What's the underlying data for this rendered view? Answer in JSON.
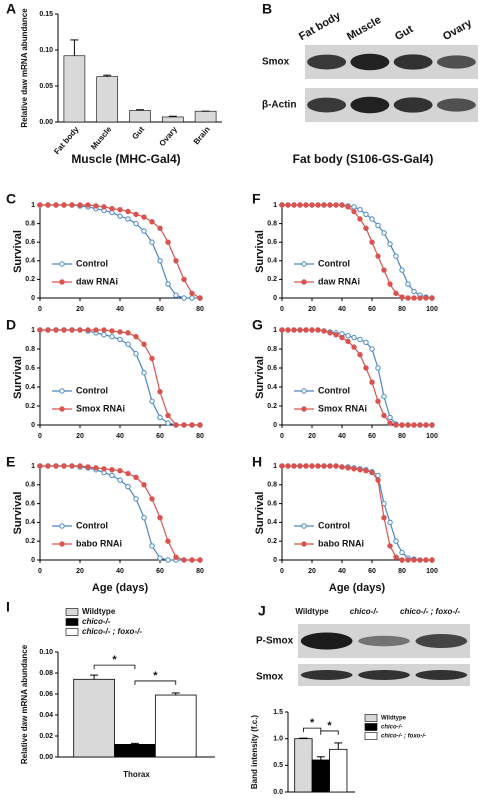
{
  "blots": [
    {
      "panel": "B",
      "columns": [
        "Fat body",
        "Muscle",
        "Gut",
        "Ovary"
      ],
      "rows": [
        "Smox",
        "β-Actin"
      ]
    },
    {
      "panel": "J",
      "columns": [
        "Wildtype",
        "chico-/-",
        "chico-/- ; foxo-/-"
      ],
      "rows": [
        "P-Smox",
        "Smox"
      ]
    }
  ],
  "chart_data": [
    {
      "type": "bar",
      "panel": "A",
      "ylabel": "Relative daw mRNA abundance",
      "categories": [
        "Fat body",
        "Muscle",
        "Gut",
        "Ovary",
        "Brain"
      ],
      "values": [
        0.092,
        0.063,
        0.016,
        0.007,
        0.015
      ],
      "errors": [
        0.022,
        0.002,
        0.001,
        0.001,
        0
      ],
      "color": "#d9d9d9",
      "ylim": [
        0,
        0.15
      ],
      "yticks": [
        {
          "value": 0,
          "label": "0.00"
        },
        {
          "value": 0.05,
          "label": "0.05"
        },
        {
          "value": 0.1,
          "label": "0.10"
        },
        {
          "value": 0.15,
          "label": "0.15"
        }
      ]
    },
    {
      "type": "line",
      "panel": "C",
      "title": "Muscle (MHC-Gal4)",
      "ylabel": "Survival",
      "x": [
        0,
        4,
        8,
        12,
        16,
        20,
        24,
        28,
        32,
        36,
        40,
        44,
        48,
        52,
        56,
        60,
        64,
        68,
        72,
        76,
        80
      ],
      "xlim": [
        0,
        80
      ],
      "xticks": [
        0,
        20,
        40,
        60,
        80
      ],
      "ylim": [
        0,
        1
      ],
      "yticks": [
        0,
        0.2,
        0.4,
        0.6,
        0.8,
        1
      ],
      "legend": "lower left",
      "series": [
        {
          "name": "Control",
          "color": "#4a86c5",
          "filled": false,
          "values": [
            1,
            1,
            1,
            1,
            1,
            0.99,
            0.98,
            0.96,
            0.94,
            0.92,
            0.88,
            0.85,
            0.8,
            0.72,
            0.6,
            0.4,
            0.15,
            0.03,
            0,
            0,
            0
          ]
        },
        {
          "name": "daw RNAi",
          "color": "#d9534f",
          "filled": true,
          "values": [
            1,
            1,
            1,
            1,
            1,
            1,
            1,
            0.99,
            0.98,
            0.96,
            0.95,
            0.93,
            0.9,
            0.87,
            0.82,
            0.75,
            0.6,
            0.4,
            0.2,
            0.05,
            0
          ]
        }
      ]
    },
    {
      "type": "line",
      "panel": "D",
      "ylabel": "Survival",
      "x": [
        0,
        4,
        8,
        12,
        16,
        20,
        24,
        28,
        32,
        36,
        40,
        44,
        48,
        52,
        56,
        60,
        64,
        68,
        72,
        76,
        80
      ],
      "xlim": [
        0,
        80
      ],
      "xticks": [
        0,
        20,
        40,
        60,
        80
      ],
      "ylim": [
        0,
        1
      ],
      "yticks": [
        0,
        0.2,
        0.4,
        0.6,
        0.8,
        1
      ],
      "legend": "lower left",
      "series": [
        {
          "name": "Control",
          "color": "#4a86c5",
          "filled": false,
          "values": [
            1,
            1,
            1,
            1,
            1,
            1,
            0.99,
            0.97,
            0.95,
            0.93,
            0.9,
            0.85,
            0.75,
            0.55,
            0.25,
            0.08,
            0.02,
            0,
            0,
            0,
            0
          ]
        },
        {
          "name": "Smox RNAi",
          "color": "#d9534f",
          "filled": true,
          "values": [
            1,
            1,
            1,
            1,
            1,
            1,
            1,
            1,
            1,
            0.99,
            0.98,
            0.97,
            0.93,
            0.85,
            0.7,
            0.35,
            0.1,
            0,
            0,
            0,
            0
          ]
        }
      ]
    },
    {
      "type": "line",
      "panel": "E",
      "ylabel": "Survival",
      "xlabel": "Age (days)",
      "x": [
        0,
        4,
        8,
        12,
        16,
        20,
        24,
        28,
        32,
        36,
        40,
        44,
        48,
        52,
        56,
        60,
        64,
        68,
        72,
        76,
        80
      ],
      "xlim": [
        0,
        80
      ],
      "xticks": [
        0,
        20,
        40,
        60,
        80
      ],
      "ylim": [
        0,
        1
      ],
      "yticks": [
        0,
        0.2,
        0.4,
        0.6,
        0.8,
        1
      ],
      "legend": "lower left",
      "series": [
        {
          "name": "Control",
          "color": "#4a86c5",
          "filled": false,
          "values": [
            1,
            1,
            1,
            1,
            1,
            0.99,
            0.98,
            0.96,
            0.93,
            0.9,
            0.85,
            0.78,
            0.65,
            0.45,
            0.15,
            0.02,
            0,
            0,
            0,
            0,
            0
          ]
        },
        {
          "name": "babo RNAi",
          "color": "#d9534f",
          "filled": true,
          "values": [
            1,
            1,
            1,
            1,
            1,
            1,
            0.99,
            0.98,
            0.97,
            0.96,
            0.95,
            0.92,
            0.88,
            0.8,
            0.65,
            0.45,
            0.2,
            0.03,
            0,
            0,
            0
          ]
        }
      ]
    },
    {
      "type": "line",
      "panel": "F",
      "title": "Fat body (S106-GS-Gal4)",
      "ylabel": "Survival",
      "x": [
        0,
        4,
        8,
        12,
        16,
        20,
        24,
        28,
        32,
        36,
        40,
        44,
        48,
        52,
        56,
        60,
        64,
        68,
        72,
        76,
        80,
        84,
        88,
        92,
        96,
        100
      ],
      "xlim": [
        0,
        100
      ],
      "xticks": [
        0,
        20,
        40,
        60,
        80,
        100
      ],
      "ylim": [
        0,
        1
      ],
      "yticks": [
        0,
        0.2,
        0.4,
        0.6,
        0.8,
        1
      ],
      "legend": "lower left",
      "series": [
        {
          "name": "Control",
          "color": "#4a86c5",
          "filled": false,
          "values": [
            1,
            1,
            1,
            1,
            1,
            1,
            1,
            1,
            1,
            1,
            1,
            0.99,
            0.98,
            0.95,
            0.9,
            0.85,
            0.78,
            0.7,
            0.58,
            0.45,
            0.3,
            0.15,
            0.07,
            0.03,
            0.01,
            0
          ]
        },
        {
          "name": "daw RNAi",
          "color": "#d9534f",
          "filled": true,
          "values": [
            1,
            1,
            1,
            1,
            1,
            1,
            1,
            1,
            1,
            1,
            1,
            0.98,
            0.93,
            0.85,
            0.75,
            0.6,
            0.45,
            0.3,
            0.15,
            0.05,
            0.01,
            0,
            0,
            0,
            0,
            0
          ]
        }
      ]
    },
    {
      "type": "line",
      "panel": "G",
      "ylabel": "Survival",
      "x": [
        0,
        4,
        8,
        12,
        16,
        20,
        24,
        28,
        32,
        36,
        40,
        44,
        48,
        52,
        56,
        60,
        64,
        68,
        72,
        76,
        80,
        84,
        88,
        92,
        96,
        100
      ],
      "xlim": [
        0,
        100
      ],
      "xticks": [
        0,
        20,
        40,
        60,
        80,
        100
      ],
      "ylim": [
        0,
        1
      ],
      "yticks": [
        0,
        0.2,
        0.4,
        0.6,
        0.8,
        1
      ],
      "legend": "lower left",
      "series": [
        {
          "name": "Control",
          "color": "#4a86c5",
          "filled": false,
          "values": [
            1,
            1,
            1,
            1,
            1,
            1,
            1,
            0.99,
            0.98,
            0.97,
            0.96,
            0.94,
            0.92,
            0.9,
            0.87,
            0.8,
            0.6,
            0.3,
            0.08,
            0.01,
            0,
            0,
            0,
            0,
            0,
            0
          ]
        },
        {
          "name": "Smox RNAi",
          "color": "#d9534f",
          "filled": true,
          "values": [
            1,
            1,
            1,
            1,
            1,
            1,
            1,
            0.99,
            0.97,
            0.95,
            0.92,
            0.88,
            0.82,
            0.74,
            0.6,
            0.45,
            0.25,
            0.1,
            0.02,
            0,
            0,
            0,
            0,
            0,
            0,
            0
          ]
        }
      ]
    },
    {
      "type": "line",
      "panel": "H",
      "ylabel": "Survival",
      "xlabel": "Age (days)",
      "x": [
        0,
        4,
        8,
        12,
        16,
        20,
        24,
        28,
        32,
        36,
        40,
        44,
        48,
        52,
        56,
        60,
        64,
        68,
        72,
        76,
        80,
        84,
        88,
        92,
        96,
        100
      ],
      "xlim": [
        0,
        100
      ],
      "xticks": [
        0,
        20,
        40,
        60,
        80,
        100
      ],
      "ylim": [
        0,
        1
      ],
      "yticks": [
        0,
        0.2,
        0.4,
        0.6,
        0.8,
        1
      ],
      "legend": "lower left",
      "series": [
        {
          "name": "Control",
          "color": "#4a86c5",
          "filled": false,
          "values": [
            1,
            1,
            1,
            1,
            1,
            1,
            1,
            1,
            1,
            1,
            0.99,
            0.99,
            0.98,
            0.97,
            0.96,
            0.94,
            0.9,
            0.6,
            0.4,
            0.2,
            0.08,
            0.02,
            0.01,
            0,
            0,
            0
          ]
        },
        {
          "name": "babo RNAi",
          "color": "#d9534f",
          "filled": true,
          "values": [
            1,
            1,
            1,
            1,
            1,
            1,
            1,
            1,
            1,
            1,
            0.99,
            0.98,
            0.97,
            0.96,
            0.95,
            0.93,
            0.85,
            0.45,
            0.15,
            0.03,
            0,
            0,
            0,
            0,
            0,
            0
          ]
        }
      ]
    },
    {
      "type": "grouped_bar",
      "panel": "I",
      "ylabel": "Relative daw mRNA abundance",
      "categories": [
        "Thorax"
      ],
      "ylim": [
        0,
        0.1
      ],
      "yticks": [
        {
          "value": 0,
          "label": "0.00"
        },
        {
          "value": 0.02,
          "label": "0.02"
        },
        {
          "value": 0.04,
          "label": "0.04"
        },
        {
          "value": 0.06,
          "label": "0.06"
        },
        {
          "value": 0.08,
          "label": "0.08"
        },
        {
          "value": 0.1,
          "label": "0.10"
        }
      ],
      "legend": "top",
      "annotations": [
        "*",
        "*"
      ],
      "series": [
        {
          "name": "Wildtype",
          "color": "#d9d9d9",
          "values": [
            0.074
          ],
          "errors": [
            0.004
          ]
        },
        {
          "name": "chico-/-",
          "color": "#000000",
          "values": [
            0.012
          ],
          "errors": [
            0.001
          ]
        },
        {
          "name": "chico-/- ; foxo-/-",
          "color": "#ffffff",
          "values": [
            0.059
          ],
          "errors": [
            0.002
          ]
        }
      ]
    },
    {
      "type": "grouped_bar",
      "ylabel": "Band intensity (f.c.)",
      "categories": [
        null
      ],
      "ylim": [
        0,
        1.5
      ],
      "yticks": [
        {
          "value": 0,
          "label": "0.0"
        },
        {
          "value": 0.5,
          "label": "0.5"
        },
        {
          "value": 1,
          "label": "1.0"
        },
        {
          "value": 1.5,
          "label": "1.5"
        }
      ],
      "legend": "right",
      "annotations": [
        "*",
        "*"
      ],
      "series": [
        {
          "name": "Wildtype",
          "color": "#d9d9d9",
          "values": [
            1.0
          ],
          "errors": [
            0.01
          ]
        },
        {
          "name": "chico-/-",
          "color": "#000000",
          "values": [
            0.6
          ],
          "errors": [
            0.06
          ]
        },
        {
          "name": "chico-/- ; foxo-/-",
          "color": "#ffffff",
          "values": [
            0.8
          ],
          "errors": [
            0.12
          ]
        }
      ]
    }
  ]
}
